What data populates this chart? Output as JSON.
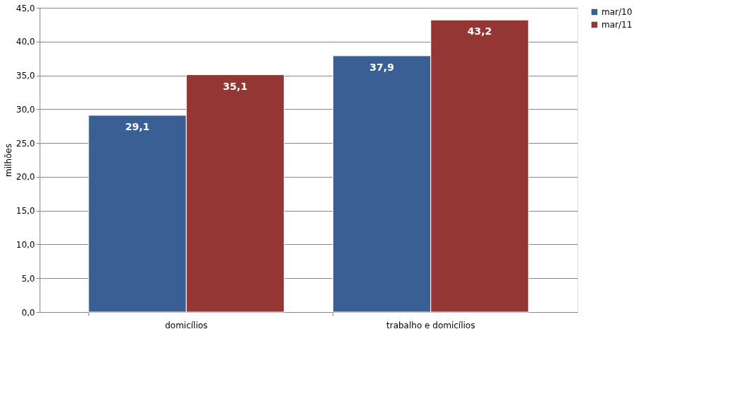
{
  "chart_data": {
    "type": "bar",
    "ylabel": "milhões",
    "categories": [
      "domicílios",
      "trabalho e domicílios"
    ],
    "series": [
      {
        "name": "mar/10",
        "color": "#3a5f95",
        "values": [
          29.1,
          37.9
        ],
        "value_labels": [
          "29,1",
          "37,9"
        ]
      },
      {
        "name": "mar/11",
        "color": "#943634",
        "values": [
          35.1,
          43.2
        ],
        "value_labels": [
          "35,1",
          "43,2"
        ]
      }
    ],
    "ylim": [
      0,
      45
    ],
    "yticks": [
      {
        "value": 0,
        "label": "0,0"
      },
      {
        "value": 5,
        "label": "5,0"
      },
      {
        "value": 10,
        "label": "10,0"
      },
      {
        "value": 15,
        "label": "15,0"
      },
      {
        "value": 20,
        "label": "20,0"
      },
      {
        "value": 25,
        "label": "25,0"
      },
      {
        "value": 30,
        "label": "30,0"
      },
      {
        "value": 35,
        "label": "35,0"
      },
      {
        "value": 40,
        "label": "40,0"
      },
      {
        "value": 45,
        "label": "45,0"
      }
    ],
    "grid": "y",
    "legend": "right"
  }
}
